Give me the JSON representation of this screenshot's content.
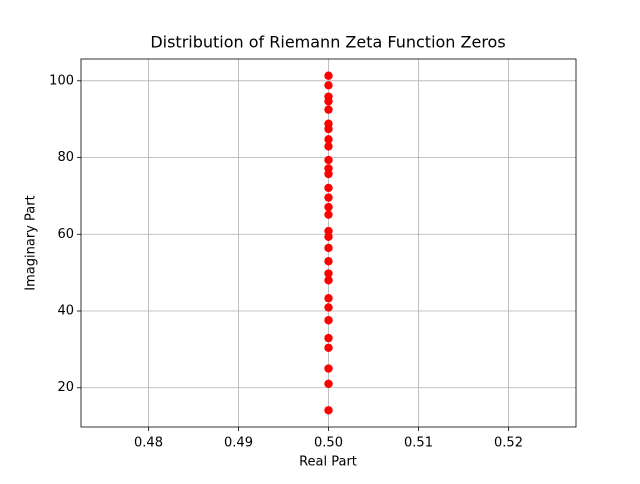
{
  "chart_data": {
    "type": "scatter",
    "title": "Distribution of Riemann Zeta Function Zeros",
    "x_label": "Real Part",
    "y_label": "Imaginary Part",
    "x": [
      0.5,
      0.5,
      0.5,
      0.5,
      0.5,
      0.5,
      0.5,
      0.5,
      0.5,
      0.5,
      0.5,
      0.5,
      0.5,
      0.5,
      0.5,
      0.5,
      0.5,
      0.5,
      0.5,
      0.5,
      0.5,
      0.5,
      0.5,
      0.5,
      0.5,
      0.5,
      0.5,
      0.5,
      0.5,
      0.5
    ],
    "values": [
      14.13,
      21.02,
      25.01,
      30.42,
      32.94,
      37.59,
      40.92,
      43.33,
      48.01,
      49.77,
      52.97,
      56.45,
      59.35,
      60.83,
      65.11,
      67.08,
      69.55,
      72.07,
      75.7,
      77.14,
      79.34,
      82.91,
      84.74,
      87.43,
      88.81,
      92.49,
      94.65,
      95.87,
      98.83,
      101.32
    ],
    "color": "#ff0000",
    "xlim": [
      0.4725,
      0.5275
    ],
    "xticks": [
      0.48,
      0.49,
      {
        "value": 0.5,
        "label": "0.50"
      },
      0.51,
      0.52
    ],
    "ylim": [
      9.77,
      105.68
    ],
    "yticks": [
      20,
      40,
      60,
      80,
      100
    ],
    "grid": true
  }
}
